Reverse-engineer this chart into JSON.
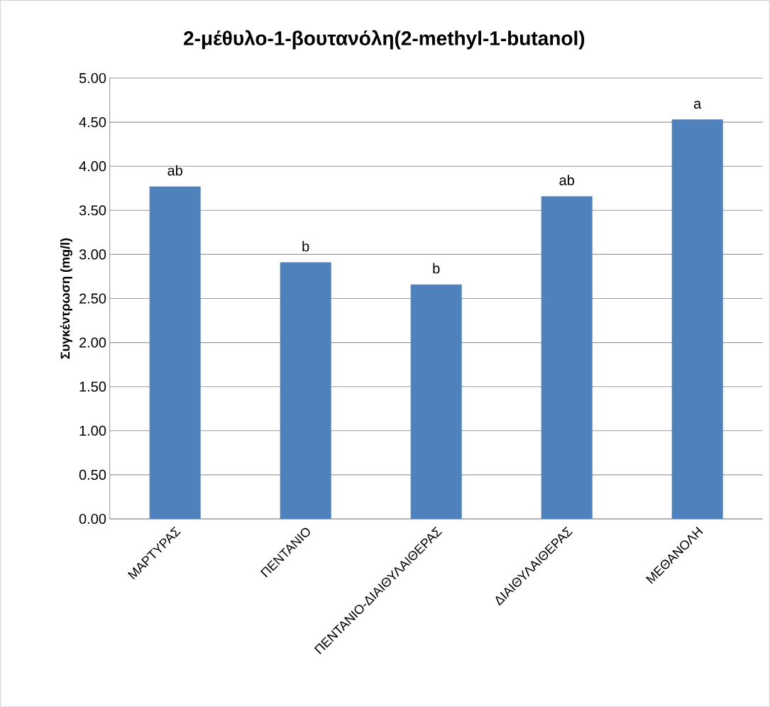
{
  "chart_data": {
    "type": "bar",
    "title": "2-μέθυλο-1-βουτανόλη(2-methyl-1-butanol)",
    "ylabel": "Συγκέντρωση (mg/l)",
    "categories": [
      "ΜΑΡΤΥΡΑΣ",
      "ΠΕΝΤΑΝΙΟ",
      "ΠΕΝΤΑΝΙΟ-ΔΙΑΙΘΥΛΑΙΘΕΡΑΣ",
      "ΔΙΑΙΘΥΛΑΙΘΕΡΑΣ",
      "ΜΕΘΑΝΟΛΗ"
    ],
    "values": [
      3.77,
      2.91,
      2.66,
      3.66,
      4.53
    ],
    "color": "#4f81bd",
    "ylim": [
      0,
      5
    ],
    "yticks": [
      {
        "value": 0,
        "label": "0.00"
      },
      {
        "value": 0.5,
        "label": "0.50"
      },
      {
        "value": 1,
        "label": "1.00"
      },
      {
        "value": 1.5,
        "label": "1.50"
      },
      {
        "value": 2,
        "label": "2.00"
      },
      {
        "value": 2.5,
        "label": "2.50"
      },
      {
        "value": 3,
        "label": "3.00"
      },
      {
        "value": 3.5,
        "label": "3.50"
      },
      {
        "value": 4,
        "label": "4.00"
      },
      {
        "value": 4.5,
        "label": "4.50"
      },
      {
        "value": 5,
        "label": "5.00"
      }
    ],
    "grid": "y",
    "annotations": [
      {
        "text": "ab",
        "x": "ΜΑΡΤΥΡΑΣ",
        "y": 3.77
      },
      {
        "text": "b",
        "x": "ΠΕΝΤΑΝΙΟ",
        "y": 2.91
      },
      {
        "text": "b",
        "x": "ΠΕΝΤΑΝΙΟ-ΔΙΑΙΘΥΛΑΙΘΕΡΑΣ",
        "y": 2.66
      },
      {
        "text": "ab",
        "x": "ΔΙΑΙΘΥΛΑΙΘΕΡΑΣ",
        "y": 3.66
      },
      {
        "text": "a",
        "x": "ΜΕΘΑΝΟΛΗ",
        "y": 4.53
      }
    ]
  }
}
